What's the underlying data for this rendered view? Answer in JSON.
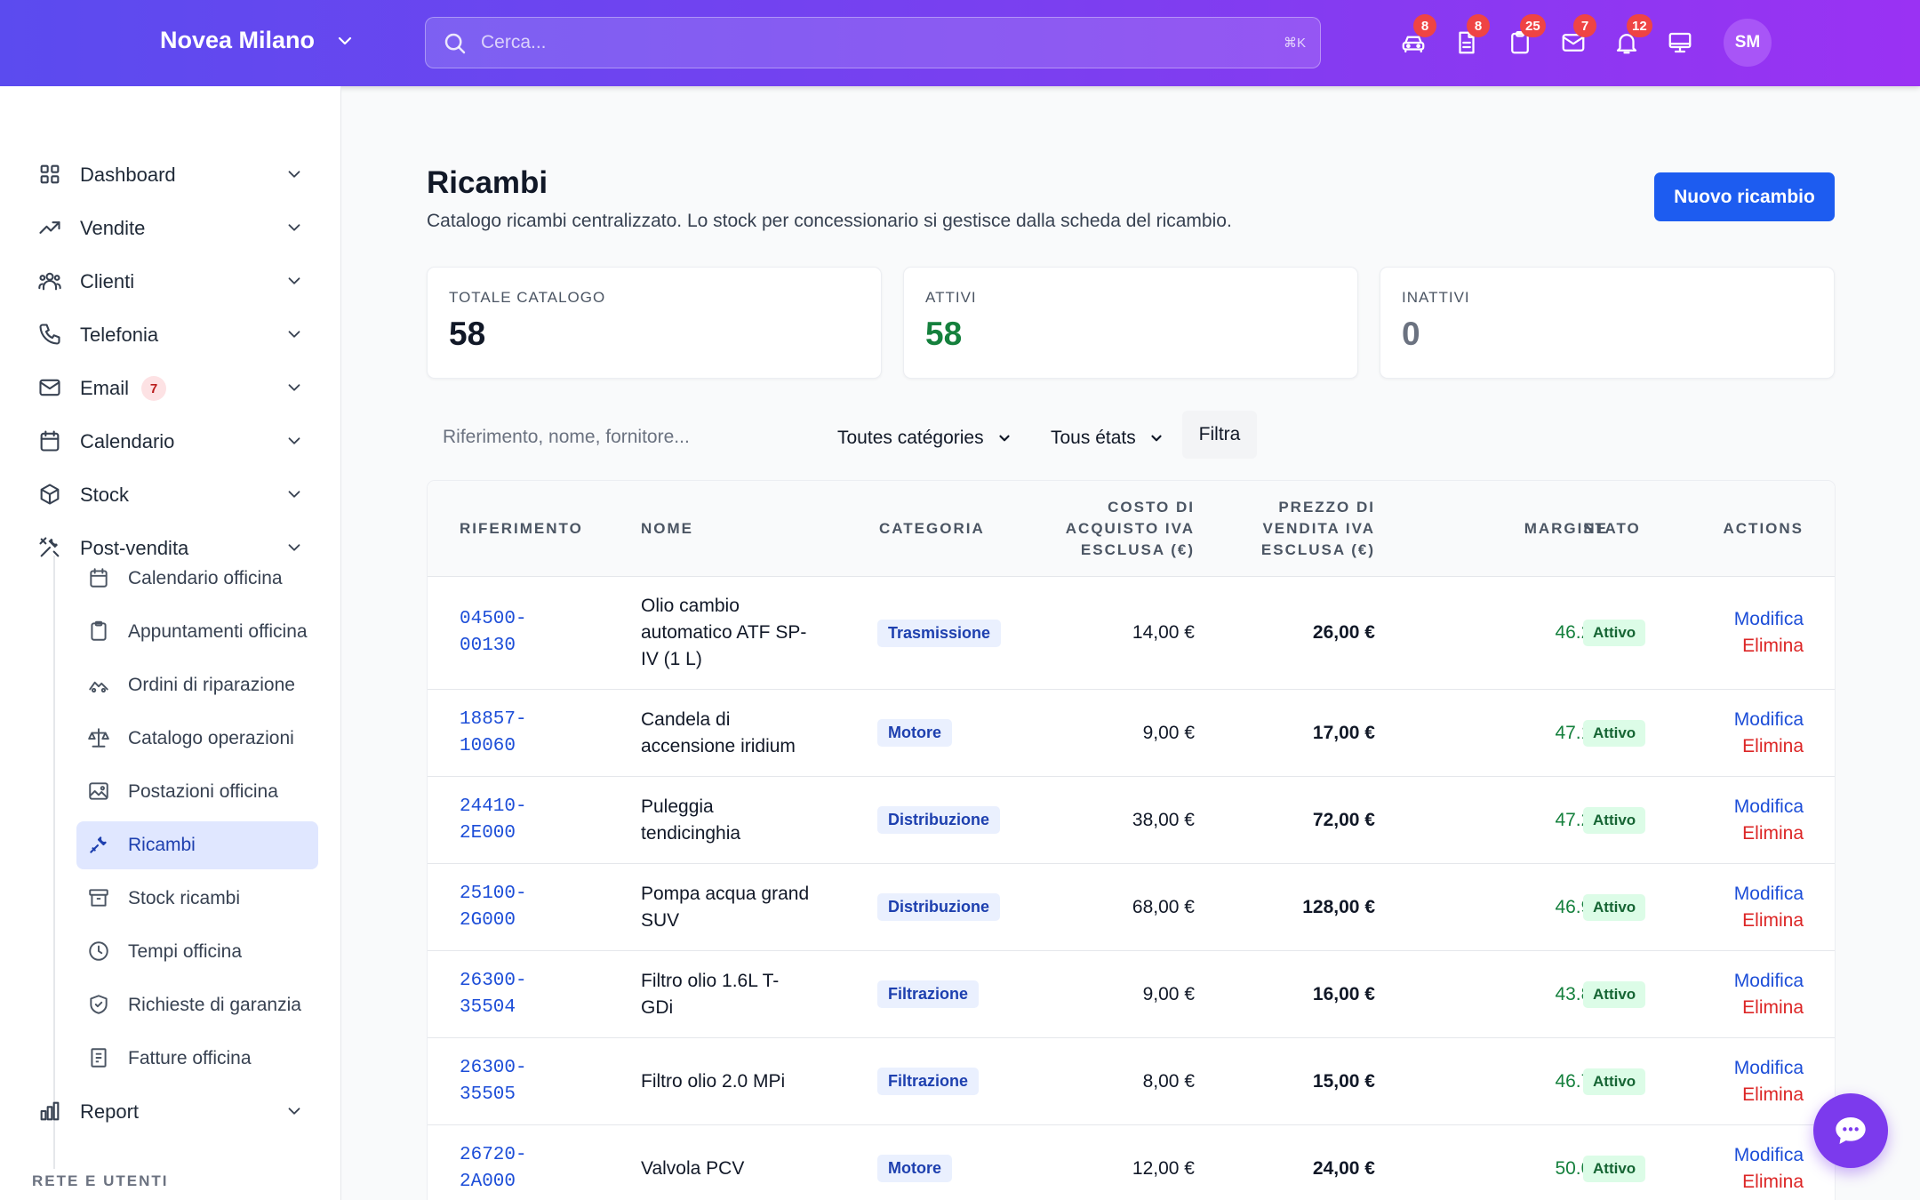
{
  "header": {
    "brand": "Novea Milano",
    "search_placeholder": "Cerca...",
    "search_shortcut": "⌘K",
    "icons": [
      {
        "name": "car-icon",
        "badge": "8"
      },
      {
        "name": "document-icon",
        "badge": "8"
      },
      {
        "name": "clipboard-icon",
        "badge": "25"
      },
      {
        "name": "mail-icon",
        "badge": "7"
      },
      {
        "name": "bell-icon",
        "badge": "12"
      },
      {
        "name": "monitor-icon",
        "badge": ""
      }
    ],
    "avatar": "SM"
  },
  "sidebar": {
    "items": [
      {
        "label": "Dashboard",
        "icon": "dashboard-icon"
      },
      {
        "label": "Vendite",
        "icon": "trending-icon"
      },
      {
        "label": "Clienti",
        "icon": "users-icon"
      },
      {
        "label": "Telefonia",
        "icon": "phone-icon"
      },
      {
        "label": "Email",
        "icon": "mail-icon",
        "badge": "7"
      },
      {
        "label": "Calendario",
        "icon": "calendar-icon"
      },
      {
        "label": "Stock",
        "icon": "box-icon"
      },
      {
        "label": "Post-vendita",
        "icon": "tools-icon"
      }
    ],
    "sub_items": [
      {
        "label": "Calendario officina",
        "icon": "calendar-icon"
      },
      {
        "label": "Appuntamenti officina",
        "icon": "clipboard-icon"
      },
      {
        "label": "Ordini di riparazione",
        "icon": "car-repair-icon"
      },
      {
        "label": "Catalogo operazioni",
        "icon": "scale-icon"
      },
      {
        "label": "Postazioni officina",
        "icon": "image-icon"
      },
      {
        "label": "Ricambi",
        "icon": "wrench-icon",
        "active": true
      },
      {
        "label": "Stock ricambi",
        "icon": "archive-icon"
      },
      {
        "label": "Tempi officina",
        "icon": "clock-icon"
      },
      {
        "label": "Richieste di garanzia",
        "icon": "shield-icon"
      },
      {
        "label": "Fatture officina",
        "icon": "invoice-icon"
      }
    ],
    "report": "Report",
    "section_label": "RETE E UTENTI"
  },
  "page": {
    "title": "Ricambi",
    "subtitle": "Catalogo ricambi centralizzato. Lo stock per concessionario si gestisce dalla scheda del ricambio.",
    "new_button": "Nuovo ricambio"
  },
  "stats": [
    {
      "label": "TOTALE CATALOGO",
      "value": "58",
      "color": "#111827"
    },
    {
      "label": "ATTIVI",
      "value": "58",
      "color": "#15803d"
    },
    {
      "label": "INATTIVI",
      "value": "0",
      "color": "#6b7280"
    }
  ],
  "filters": {
    "search_placeholder": "Riferimento, nome, fornitore...",
    "category": "Toutes catégories",
    "state": "Tous états",
    "filter_button": "Filtra"
  },
  "table": {
    "headers": {
      "ref": "RIFERIMENTO",
      "name": "NOME",
      "category": "CATEGORIA",
      "cost": [
        "COSTO DI",
        "ACQUISTO IVA",
        "ESCLUSA (€)"
      ],
      "price": [
        "PREZZO DI",
        "VENDITA IVA",
        "ESCLUSA (€)"
      ],
      "margin": "MARGINE",
      "state": "STATO",
      "actions": "ACTIONS"
    },
    "rows": [
      {
        "ref": [
          "04500-",
          "00130"
        ],
        "name": [
          "Olio cambio",
          "automatico ATF SP-",
          "IV (1 L)"
        ],
        "category": "Trasmissione",
        "cost": "14,00 €",
        "price": "26,00 €",
        "margin": "46.2%",
        "state": "Attivo",
        "edit": "Modifica",
        "delete": "Elimina"
      },
      {
        "ref": [
          "18857-",
          "10060"
        ],
        "name": [
          "Candela di",
          "accensione iridium"
        ],
        "category": "Motore",
        "cost": "9,00 €",
        "price": "17,00 €",
        "margin": "47.1%",
        "state": "Attivo",
        "edit": "Modifica",
        "delete": "Elimina"
      },
      {
        "ref": [
          "24410-",
          "2E000"
        ],
        "name": [
          "Puleggia",
          "tendicinghia"
        ],
        "category": "Distribuzione",
        "cost": "38,00 €",
        "price": "72,00 €",
        "margin": "47.2%",
        "state": "Attivo",
        "edit": "Modifica",
        "delete": "Elimina"
      },
      {
        "ref": [
          "25100-",
          "2G000"
        ],
        "name": [
          "Pompa acqua grand",
          "SUV"
        ],
        "category": "Distribuzione",
        "cost": "68,00 €",
        "price": "128,00 €",
        "margin": "46.9%",
        "state": "Attivo",
        "edit": "Modifica",
        "delete": "Elimina"
      },
      {
        "ref": [
          "26300-",
          "35504"
        ],
        "name": [
          "Filtro olio 1.6L T-",
          "GDi"
        ],
        "category": "Filtrazione",
        "cost": "9,00 €",
        "price": "16,00 €",
        "margin": "43.8%",
        "state": "Attivo",
        "edit": "Modifica",
        "delete": "Elimina"
      },
      {
        "ref": [
          "26300-",
          "35505"
        ],
        "name": [
          "Filtro olio 2.0 MPi"
        ],
        "category": "Filtrazione",
        "cost": "8,00 €",
        "price": "15,00 €",
        "margin": "46.7%",
        "state": "Attivo",
        "edit": "Modifica",
        "delete": "Elimina"
      },
      {
        "ref": [
          "26720-",
          "2A000"
        ],
        "name": [
          "Valvola PCV"
        ],
        "category": "Motore",
        "cost": "12,00 €",
        "price": "24,00 €",
        "margin": "50.0%",
        "state": "Attivo",
        "edit": "Modifica",
        "delete": "Elimina"
      }
    ]
  }
}
